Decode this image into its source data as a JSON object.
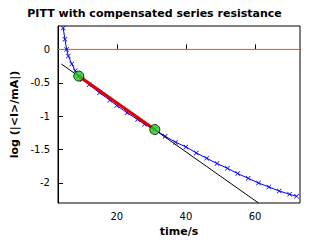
{
  "chart_data": {
    "type": "line",
    "title": "PITT with compensated series resistance",
    "x_label": "time/s",
    "y_label": "log (|<I>/mA|)",
    "xlim": [
      3,
      73
    ],
    "ylim": [
      -2.3,
      0.35
    ],
    "xticks": [
      20,
      40,
      60
    ],
    "yticks": [
      0,
      -0.5,
      -1,
      -1.5,
      -2
    ],
    "grid": false,
    "series": [
      {
        "type": "line",
        "color": "#ff8000",
        "marker": "none",
        "line_style": "solid",
        "x": [
          3,
          73
        ],
        "values": [
          0,
          0
        ]
      },
      {
        "type": "line",
        "color": "#0000ff",
        "marker": "cross",
        "line_style": "solid",
        "x": [
          4.5,
          5,
          5.5,
          6,
          7,
          8,
          9,
          10,
          12,
          15,
          18,
          20,
          23,
          26,
          28,
          31,
          34,
          37,
          40,
          43,
          46,
          49,
          52,
          55,
          58,
          61,
          64,
          67,
          70,
          72
        ],
        "values": [
          0.32,
          0.15,
          0.0,
          -0.1,
          -0.22,
          -0.32,
          -0.4,
          -0.45,
          -0.53,
          -0.65,
          -0.76,
          -0.84,
          -0.95,
          -1.05,
          -1.12,
          -1.2,
          -1.3,
          -1.39,
          -1.46,
          -1.55,
          -1.63,
          -1.71,
          -1.78,
          -1.86,
          -1.93,
          -2.0,
          -2.06,
          -2.12,
          -2.17,
          -2.2
        ]
      },
      {
        "type": "line",
        "color": "#000000",
        "marker": "none",
        "line_style": "solid",
        "x": [
          4,
          61
        ],
        "values": [
          -0.22,
          -2.3
        ]
      },
      {
        "type": "line",
        "color": "#e00000",
        "marker": "none",
        "line_style": "solid",
        "x": [
          9,
          31
        ],
        "values": [
          -0.4,
          -1.2
        ]
      },
      {
        "type": "scatter",
        "color": "#22cc22",
        "marker": "circle",
        "line_style": "none",
        "x": [
          9,
          31
        ],
        "values": [
          -0.4,
          -1.2
        ]
      }
    ]
  }
}
